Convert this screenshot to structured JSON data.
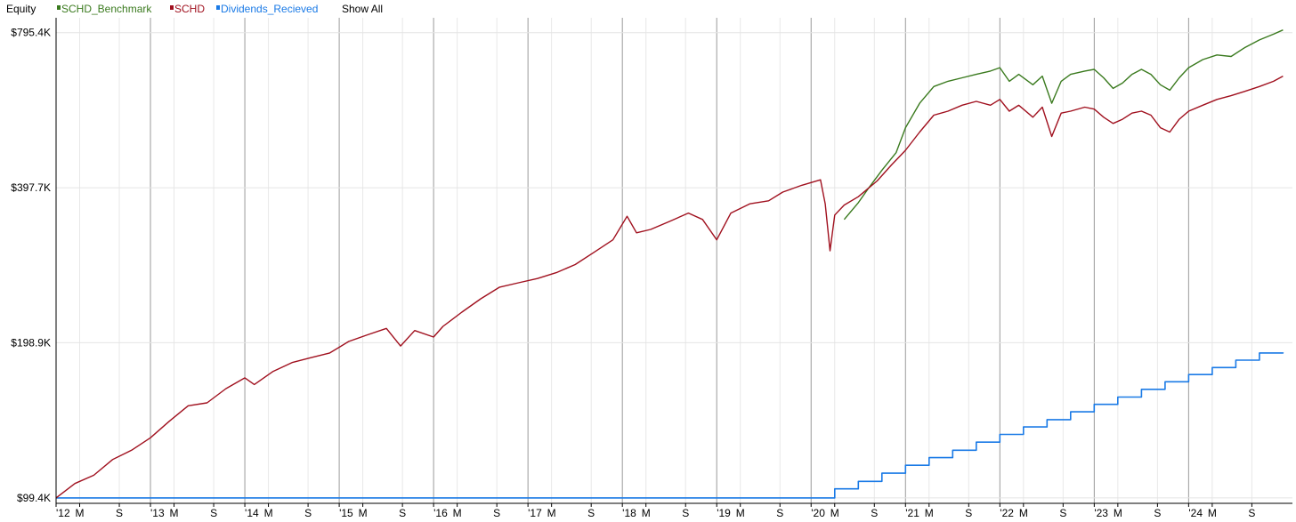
{
  "legend": {
    "title": "Equity",
    "show_all_label": "Show All",
    "entries": [
      {
        "label": "SCHD_Benchmark",
        "color": "#3a7a1e"
      },
      {
        "label": "SCHD",
        "color": "#a0101e"
      },
      {
        "label": "Dividends_Recieved",
        "color": "#1a7ae6"
      }
    ]
  },
  "chart_data": {
    "type": "line",
    "y_scale": "log",
    "ylim": [
      97000,
      850000
    ],
    "xlim": [
      2012.0,
      2025.1
    ],
    "y_ticks": [
      {
        "label": "$795.4K",
        "value": 795400
      },
      {
        "label": "$397.7K",
        "value": 397700
      },
      {
        "label": "$198.9K",
        "value": 198900
      },
      {
        "label": "$99.4K",
        "value": 99400
      }
    ],
    "x_ticks": [
      {
        "label": "'12",
        "value": 2012.0,
        "year": true
      },
      {
        "label": "M",
        "value": 2012.25
      },
      {
        "label": "S",
        "value": 2012.67
      },
      {
        "label": "'13",
        "value": 2013.0,
        "year": true
      },
      {
        "label": "M",
        "value": 2013.25
      },
      {
        "label": "S",
        "value": 2013.67
      },
      {
        "label": "'14",
        "value": 2014.0,
        "year": true
      },
      {
        "label": "M",
        "value": 2014.25
      },
      {
        "label": "S",
        "value": 2014.67
      },
      {
        "label": "'15",
        "value": 2015.0,
        "year": true
      },
      {
        "label": "M",
        "value": 2015.25
      },
      {
        "label": "S",
        "value": 2015.67
      },
      {
        "label": "'16",
        "value": 2016.0,
        "year": true
      },
      {
        "label": "M",
        "value": 2016.25
      },
      {
        "label": "S",
        "value": 2016.67
      },
      {
        "label": "'17",
        "value": 2017.0,
        "year": true
      },
      {
        "label": "M",
        "value": 2017.25
      },
      {
        "label": "S",
        "value": 2017.67
      },
      {
        "label": "'18",
        "value": 2018.0,
        "year": true
      },
      {
        "label": "M",
        "value": 2018.25
      },
      {
        "label": "S",
        "value": 2018.67
      },
      {
        "label": "'19",
        "value": 2019.0,
        "year": true
      },
      {
        "label": "M",
        "value": 2019.25
      },
      {
        "label": "S",
        "value": 2019.67
      },
      {
        "label": "'20",
        "value": 2020.0,
        "year": true
      },
      {
        "label": "M",
        "value": 2020.25
      },
      {
        "label": "S",
        "value": 2020.67
      },
      {
        "label": "'21",
        "value": 2021.0,
        "year": true
      },
      {
        "label": "M",
        "value": 2021.25
      },
      {
        "label": "S",
        "value": 2021.67
      },
      {
        "label": "'22",
        "value": 2022.0,
        "year": true
      },
      {
        "label": "M",
        "value": 2022.25
      },
      {
        "label": "S",
        "value": 2022.67
      },
      {
        "label": "'23",
        "value": 2023.0,
        "year": true
      },
      {
        "label": "M",
        "value": 2023.25
      },
      {
        "label": "S",
        "value": 2023.67
      },
      {
        "label": "'24",
        "value": 2024.0,
        "year": true
      },
      {
        "label": "M",
        "value": 2024.25
      },
      {
        "label": "S",
        "value": 2024.67
      }
    ],
    "series": [
      {
        "name": "SCHD_Benchmark",
        "color": "#3a7a1e",
        "x": [
          2020.35,
          2020.5,
          2020.6,
          2020.75,
          2020.9,
          2021.0,
          2021.15,
          2021.3,
          2021.45,
          2021.6,
          2021.75,
          2021.9,
          2022.0,
          2022.1,
          2022.2,
          2022.35,
          2022.45,
          2022.55,
          2022.65,
          2022.75,
          2022.9,
          2023.0,
          2023.1,
          2023.2,
          2023.3,
          2023.4,
          2023.5,
          2023.6,
          2023.7,
          2023.8,
          2023.9,
          2024.0,
          2024.15,
          2024.3,
          2024.45,
          2024.6,
          2024.75,
          2024.9,
          2025.0
        ],
        "y": [
          345000,
          372000,
          395000,
          430000,
          465000,
          520000,
          580000,
          625000,
          640000,
          650000,
          660000,
          670000,
          680000,
          640000,
          660000,
          630000,
          655000,
          580000,
          640000,
          660000,
          670000,
          675000,
          650000,
          620000,
          635000,
          660000,
          675000,
          660000,
          630000,
          615000,
          650000,
          680000,
          705000,
          720000,
          715000,
          745000,
          770000,
          790000,
          805000
        ]
      },
      {
        "name": "SCHD",
        "color": "#a0101e",
        "x": [
          2012.0,
          2012.2,
          2012.4,
          2012.6,
          2012.8,
          2013.0,
          2013.2,
          2013.4,
          2013.6,
          2013.8,
          2014.0,
          2014.1,
          2014.3,
          2014.5,
          2014.7,
          2014.9,
          2015.1,
          2015.3,
          2015.5,
          2015.65,
          2015.8,
          2016.0,
          2016.1,
          2016.3,
          2016.5,
          2016.7,
          2016.9,
          2017.1,
          2017.3,
          2017.5,
          2017.7,
          2017.9,
          2018.05,
          2018.15,
          2018.3,
          2018.5,
          2018.7,
          2018.85,
          2019.0,
          2019.15,
          2019.35,
          2019.55,
          2019.7,
          2019.9,
          2020.1,
          2020.15,
          2020.2,
          2020.25,
          2020.35,
          2020.5,
          2020.7,
          2020.85,
          2021.0,
          2021.15,
          2021.3,
          2021.45,
          2021.6,
          2021.75,
          2021.9,
          2022.0,
          2022.1,
          2022.2,
          2022.35,
          2022.45,
          2022.55,
          2022.65,
          2022.75,
          2022.9,
          2023.0,
          2023.1,
          2023.2,
          2023.3,
          2023.4,
          2023.5,
          2023.6,
          2023.7,
          2023.8,
          2023.9,
          2024.0,
          2024.15,
          2024.3,
          2024.45,
          2024.6,
          2024.75,
          2024.9,
          2025.0
        ],
        "y": [
          99400,
          106000,
          110000,
          118000,
          123000,
          130000,
          140000,
          150000,
          152000,
          162000,
          170000,
          165000,
          175000,
          182000,
          186000,
          190000,
          200000,
          206000,
          212000,
          196000,
          210000,
          204000,
          214000,
          228000,
          242000,
          255000,
          260000,
          265000,
          272000,
          282000,
          298000,
          315000,
          350000,
          325000,
          330000,
          342000,
          355000,
          345000,
          315000,
          355000,
          370000,
          375000,
          390000,
          402000,
          412000,
          370000,
          300000,
          352000,
          368000,
          382000,
          410000,
          440000,
          470000,
          510000,
          550000,
          560000,
          575000,
          585000,
          575000,
          590000,
          560000,
          575000,
          545000,
          570000,
          500000,
          555000,
          560000,
          570000,
          565000,
          545000,
          530000,
          540000,
          555000,
          560000,
          550000,
          520000,
          510000,
          540000,
          560000,
          575000,
          590000,
          600000,
          612000,
          625000,
          640000,
          655000
        ]
      },
      {
        "name": "Dividends_Recieved",
        "color": "#1a7ae6",
        "step": true,
        "x": [
          2012.0,
          2020.25,
          2020.5,
          2020.75,
          2021.0,
          2021.25,
          2021.5,
          2021.75,
          2022.0,
          2022.25,
          2022.5,
          2022.75,
          2023.0,
          2023.25,
          2023.5,
          2023.75,
          2024.0,
          2024.25,
          2024.5,
          2024.75,
          2025.0
        ],
        "y": [
          99400,
          103500,
          107000,
          111000,
          115000,
          119000,
          123000,
          127500,
          132000,
          136500,
          141000,
          146000,
          151000,
          156000,
          161500,
          167000,
          172500,
          178000,
          184000,
          190000,
          190500
        ]
      }
    ]
  }
}
